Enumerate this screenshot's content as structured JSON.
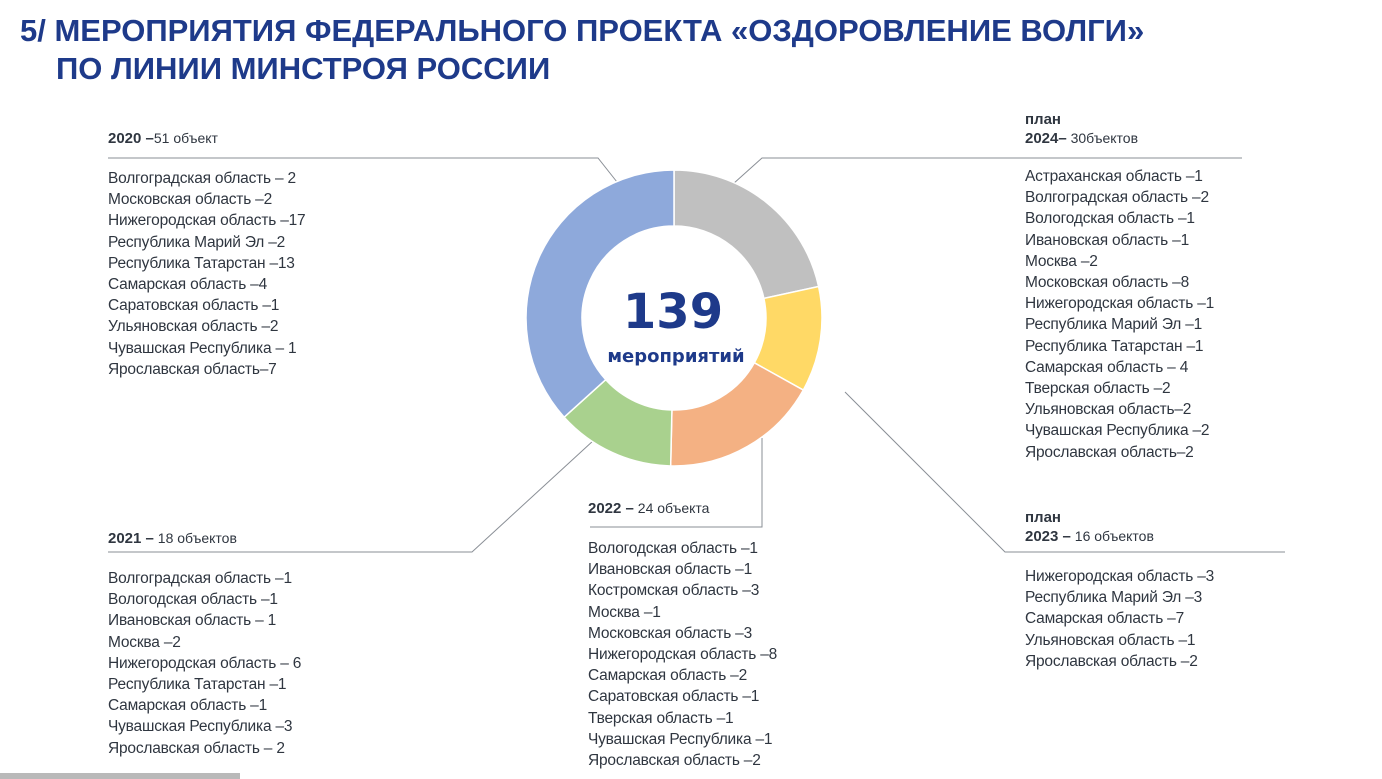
{
  "header": {
    "title_line1": "5/ МЕРОПРИЯТИЯ ФЕДЕРАЛЬНОГО ПРОЕКТА «ОЗДОРОВЛЕНИЕ ВОЛГИ»",
    "title_line2": "ПО ЛИНИИ МИНСТРОЯ РОССИИ"
  },
  "colors": {
    "title": "#1e3a8a",
    "y2020": "#8ea9db",
    "y2021": "#a9d18e",
    "y2022": "#f4b183",
    "y2023": "#ffd966",
    "y2024": "#c0c0c0"
  },
  "chart_data": {
    "type": "pie",
    "title": "",
    "center_total": "139",
    "center_label": "мероприятий",
    "order": [
      "2024",
      "2023",
      "2022",
      "2021",
      "2020"
    ],
    "slices": [
      {
        "year": "2024",
        "value": 30
      },
      {
        "year": "2023",
        "value": 16
      },
      {
        "year": "2022",
        "value": 24
      },
      {
        "year": "2021",
        "value": 18
      },
      {
        "year": "2020",
        "value": 51
      }
    ]
  },
  "groups": {
    "g2020": {
      "plan": "",
      "year": "2020",
      "dash": " –",
      "count": "51 объект",
      "items": [
        "Волгоградская область – 2",
        "Московская область –2",
        "Нижегородская область –17",
        "Республика Марий Эл –2",
        "Республика Татарстан –13",
        "Самарская область –4",
        "Саратовская область –1",
        "Ульяновская область –2",
        "Чувашская Республика – 1",
        "Ярославская область–7"
      ]
    },
    "g2021": {
      "plan": "",
      "year": "2021",
      "dash": " –",
      "count": "  18 объектов",
      "items": [
        "Волгоградская область –1",
        "Вологодская область –1",
        "Ивановская область – 1",
        "Москва –2",
        "Нижегородская область – 6",
        "Республика Татарстан –1",
        "Самарская область –1",
        "Чувашская Республика –3",
        "Ярославская область – 2"
      ]
    },
    "g2022": {
      "plan": "",
      "year": "2022",
      "dash": " –",
      "count": " 24 объекта",
      "items": [
        "Вологодская область –1",
        "Ивановская область –1",
        "Костромская область –3",
        "Москва –1",
        "Московская область –3",
        "Нижегородская область –8",
        "Самарская область –2",
        "Саратовская область –1",
        "Тверская область –1",
        "Чувашская Республика –1",
        "Ярославская область –2"
      ]
    },
    "g2024": {
      "plan": "план",
      "year": "2024",
      "dash": "–",
      "count": "  30бъектов",
      "items": [
        "Астраханская область –1",
        "Волгоградская область –2",
        "Вологодская область –1",
        "Ивановская область –1",
        "Москва –2",
        "Московская область –8",
        "Нижегородская область –1",
        "Республика Марий Эл –1",
        "Республика Татарстан –1",
        "Самарская область – 4",
        "Тверская область –2",
        "Ульяновская область–2",
        "Чувашская Республика –2",
        "Ярославская область–2"
      ]
    },
    "g2023": {
      "plan": "план",
      "year": "2023",
      "dash": " –",
      "count": " 16 объектов",
      "items": [
        "Нижегородская область –3",
        "Республика Марий Эл –3",
        "Самарская область –7",
        "Ульяновская область –1",
        "Ярославская область –2"
      ]
    }
  }
}
